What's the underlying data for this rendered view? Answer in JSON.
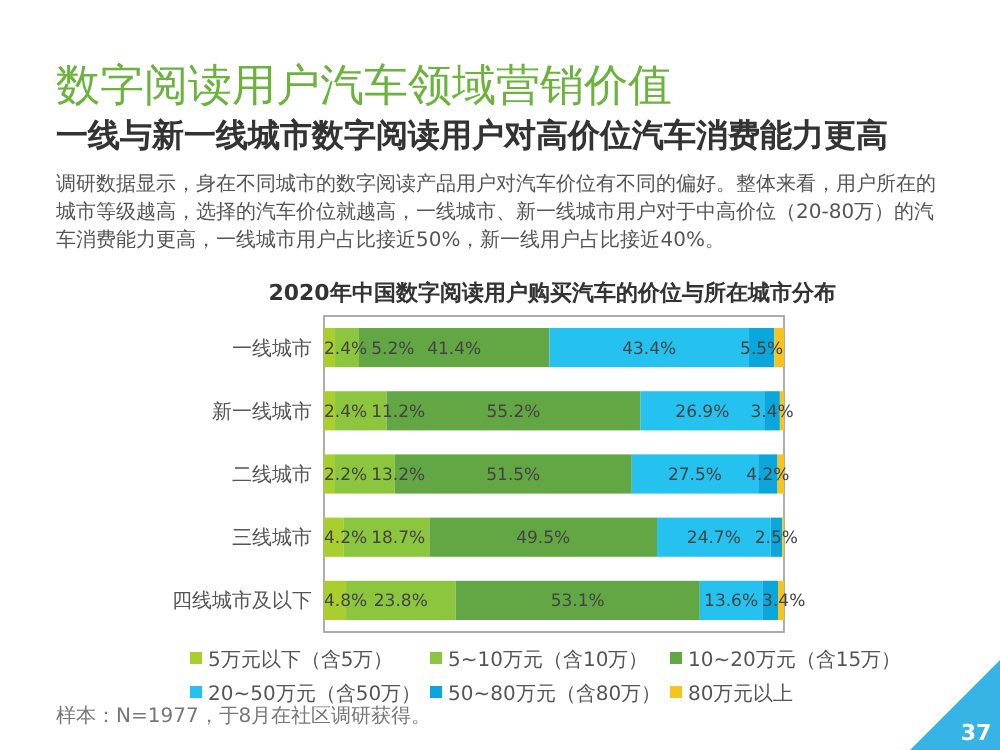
{
  "chart_data": {
    "type": "bar",
    "orientation": "horizontal",
    "stacked": true,
    "title": "2020年中国数字阅读用户购买汽车的价位与所在城市分布",
    "annotations": [
      "数字阅读用户汽车领域营销价值",
      "一线与新一线城市数字阅读用户对高价位汽车消费能力更高",
      "调研数据显示，身在不同城市的数字阅读产品用户对汽车价位有不同的偏好。整体来看，用户所在的城市等级越高，选择的汽车价位就越高，一线城市、新一线城市用户对于中高价位（20-80万）的汽车消费能力更高，一线城市用户占比接近50%，新一线用户占比接近40%。",
      "样本：N=1977，于8月在社区调研获得。",
      "37"
    ],
    "categories": [
      "一线城市",
      "新一线城市",
      "二线城市",
      "三线城市",
      "四线城市及以下"
    ],
    "legend": "bottom",
    "series": [
      {
        "name": "5万元以下（含5万）",
        "color": "#a8cf2e",
        "values": [
          2.4,
          2.4,
          2.2,
          4.2,
          4.8
        ],
        "value_labels": [
          "2.4%",
          "2.4%",
          "2.2%",
          "4.2%",
          "4.8%"
        ]
      },
      {
        "name": "5~10万元（含10万）",
        "color": "#8cc63f",
        "values": [
          5.2,
          11.2,
          13.2,
          18.7,
          23.8
        ],
        "value_labels": [
          "5.2%",
          "11.2%",
          "13.2%",
          "18.7%",
          "23.8%"
        ]
      },
      {
        "name": "10~20万元（含15万）",
        "color": "#62a744",
        "values": [
          41.4,
          55.2,
          51.5,
          49.5,
          53.1
        ],
        "value_labels": [
          "41.4%",
          "55.2%",
          "51.5%",
          "49.5%",
          "53.1%"
        ]
      },
      {
        "name": "20~50万元（含50万）",
        "color": "#25c2f0",
        "values": [
          43.4,
          26.9,
          27.5,
          24.7,
          13.6
        ],
        "value_labels": [
          "43.4%",
          "26.9%",
          "27.5%",
          "24.7%",
          "13.6%"
        ]
      },
      {
        "name": "50~80万元（含80万）",
        "color": "#0ba6dc",
        "values": [
          5.5,
          3.4,
          4.2,
          2.5,
          3.4
        ],
        "value_labels": [
          "5.5%",
          "3.4%",
          "4.2%",
          "2.5%",
          "3.4%"
        ]
      },
      {
        "name": "80万元以上",
        "color": "#f7c41f",
        "values": [
          2.1,
          0.9,
          1.4,
          0.4,
          1.3
        ],
        "value_labels": [
          null,
          null,
          null,
          null,
          null
        ]
      }
    ]
  }
}
